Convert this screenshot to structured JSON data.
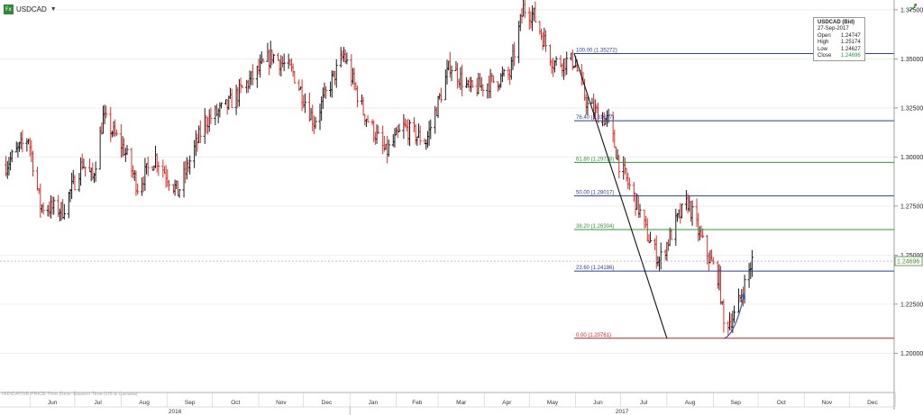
{
  "header": {
    "fx_icon": "Fx",
    "symbol": "USDCAD",
    "dropdown_icon": "caret-down-icon",
    "corner_icon": "trend-arrow-icon"
  },
  "info_box": {
    "title": "USDCAD (Bid)",
    "date": "27-Sep-2017",
    "rows": [
      {
        "label": "Open",
        "value": "1.24747"
      },
      {
        "label": "High",
        "value": "1.25174"
      },
      {
        "label": "Low",
        "value": "1.24627"
      },
      {
        "label": "Close",
        "value": "1.24696"
      }
    ]
  },
  "footer": {
    "note": "INDICATIVE PRICE   Time Zone: Eastern Time (US & Canada)"
  },
  "colors": {
    "up_bar": "#1a1a1a",
    "down_bar": "#d9302c",
    "fib_blue": "#2b3f9e",
    "fib_green": "#2a9a3a",
    "fib_red": "#cc1f1f",
    "current_price": "#4a8a2a"
  },
  "chart_data": {
    "type": "ohlc",
    "symbol": "USDCAD",
    "ylim": [
      1.18,
      1.38
    ],
    "y_ticks": [
      "1.37500",
      "1.35000",
      "1.32500",
      "1.30000",
      "1.27500",
      "1.25000",
      "1.22500",
      "1.20000"
    ],
    "months": [
      "Jun",
      "Jul",
      "Aug",
      "Sep",
      "Oct",
      "Nov",
      "Dec",
      "Jan",
      "Feb",
      "Mar",
      "Apr",
      "May",
      "Jun",
      "Jul",
      "Aug",
      "Sep",
      "Oct",
      "Nov",
      "Dec"
    ],
    "years": [
      "2016",
      "2017"
    ],
    "current_price": 1.24696,
    "current_price_label": "1.24696",
    "fibonacci": [
      {
        "label": "100.00 (1.35272)",
        "level": 1.35272,
        "color": "blue"
      },
      {
        "label": "76.40 (1.31847)",
        "level": 1.31847,
        "color": "blue"
      },
      {
        "label": "61.80 (1.29728)",
        "level": 1.29728,
        "color": "green"
      },
      {
        "label": "50.00 (1.28017)",
        "level": 1.28017,
        "color": "blue"
      },
      {
        "label": "38.20 (1.26304)",
        "level": 1.26304,
        "color": "green"
      },
      {
        "label": "23.60 (1.24186)",
        "level": 1.24186,
        "color": "blue"
      },
      {
        "label": "0.00 (1.20761)",
        "level": 1.20761,
        "color": "red"
      }
    ],
    "fib_anchor_line": [
      {
        "x": "2017-05-31",
        "y": 1.35272
      },
      {
        "x": "2017-08-01",
        "y": 1.20761
      }
    ],
    "trend_arrow": [
      {
        "x": "2017-09-08",
        "y": 1.2076
      },
      {
        "x": "2017-09-22",
        "y": 1.2305
      }
    ],
    "keypoints": [
      {
        "x": "2016-05-16",
        "y": 1.296
      },
      {
        "x": "2016-05-31",
        "y": 1.31
      },
      {
        "x": "2016-06-08",
        "y": 1.275
      },
      {
        "x": "2016-06-23",
        "y": 1.273
      },
      {
        "x": "2016-07-06",
        "y": 1.297
      },
      {
        "x": "2016-07-13",
        "y": 1.289
      },
      {
        "x": "2016-07-20",
        "y": 1.32
      },
      {
        "x": "2016-08-03",
        "y": 1.304
      },
      {
        "x": "2016-08-12",
        "y": 1.285
      },
      {
        "x": "2016-08-24",
        "y": 1.3
      },
      {
        "x": "2016-09-08",
        "y": 1.282
      },
      {
        "x": "2016-09-26",
        "y": 1.318
      },
      {
        "x": "2016-10-11",
        "y": 1.326
      },
      {
        "x": "2016-10-25",
        "y": 1.338
      },
      {
        "x": "2016-11-10",
        "y": 1.352
      },
      {
        "x": "2016-11-24",
        "y": 1.343
      },
      {
        "x": "2016-12-08",
        "y": 1.318
      },
      {
        "x": "2016-12-20",
        "y": 1.339
      },
      {
        "x": "2016-12-28",
        "y": 1.352
      },
      {
        "x": "2017-01-10",
        "y": 1.323
      },
      {
        "x": "2017-01-25",
        "y": 1.302
      },
      {
        "x": "2017-02-06",
        "y": 1.315
      },
      {
        "x": "2017-02-21",
        "y": 1.308
      },
      {
        "x": "2017-03-09",
        "y": 1.347
      },
      {
        "x": "2017-03-22",
        "y": 1.334
      },
      {
        "x": "2017-04-05",
        "y": 1.338
      },
      {
        "x": "2017-04-18",
        "y": 1.342
      },
      {
        "x": "2017-04-27",
        "y": 1.376
      },
      {
        "x": "2017-05-04",
        "y": 1.372
      },
      {
        "x": "2017-05-17",
        "y": 1.348
      },
      {
        "x": "2017-05-31",
        "y": 1.349
      },
      {
        "x": "2017-06-09",
        "y": 1.326
      },
      {
        "x": "2017-06-23",
        "y": 1.318
      },
      {
        "x": "2017-06-30",
        "y": 1.297
      },
      {
        "x": "2017-07-12",
        "y": 1.276
      },
      {
        "x": "2017-07-19",
        "y": 1.26
      },
      {
        "x": "2017-07-27",
        "y": 1.247
      },
      {
        "x": "2017-08-08",
        "y": 1.268
      },
      {
        "x": "2017-08-15",
        "y": 1.277
      },
      {
        "x": "2017-08-24",
        "y": 1.258
      },
      {
        "x": "2017-08-30",
        "y": 1.247
      },
      {
        "x": "2017-09-05",
        "y": 1.238
      },
      {
        "x": "2017-09-08",
        "y": 1.214
      },
      {
        "x": "2017-09-15",
        "y": 1.219
      },
      {
        "x": "2017-09-22",
        "y": 1.235
      },
      {
        "x": "2017-09-27",
        "y": 1.247
      }
    ]
  }
}
